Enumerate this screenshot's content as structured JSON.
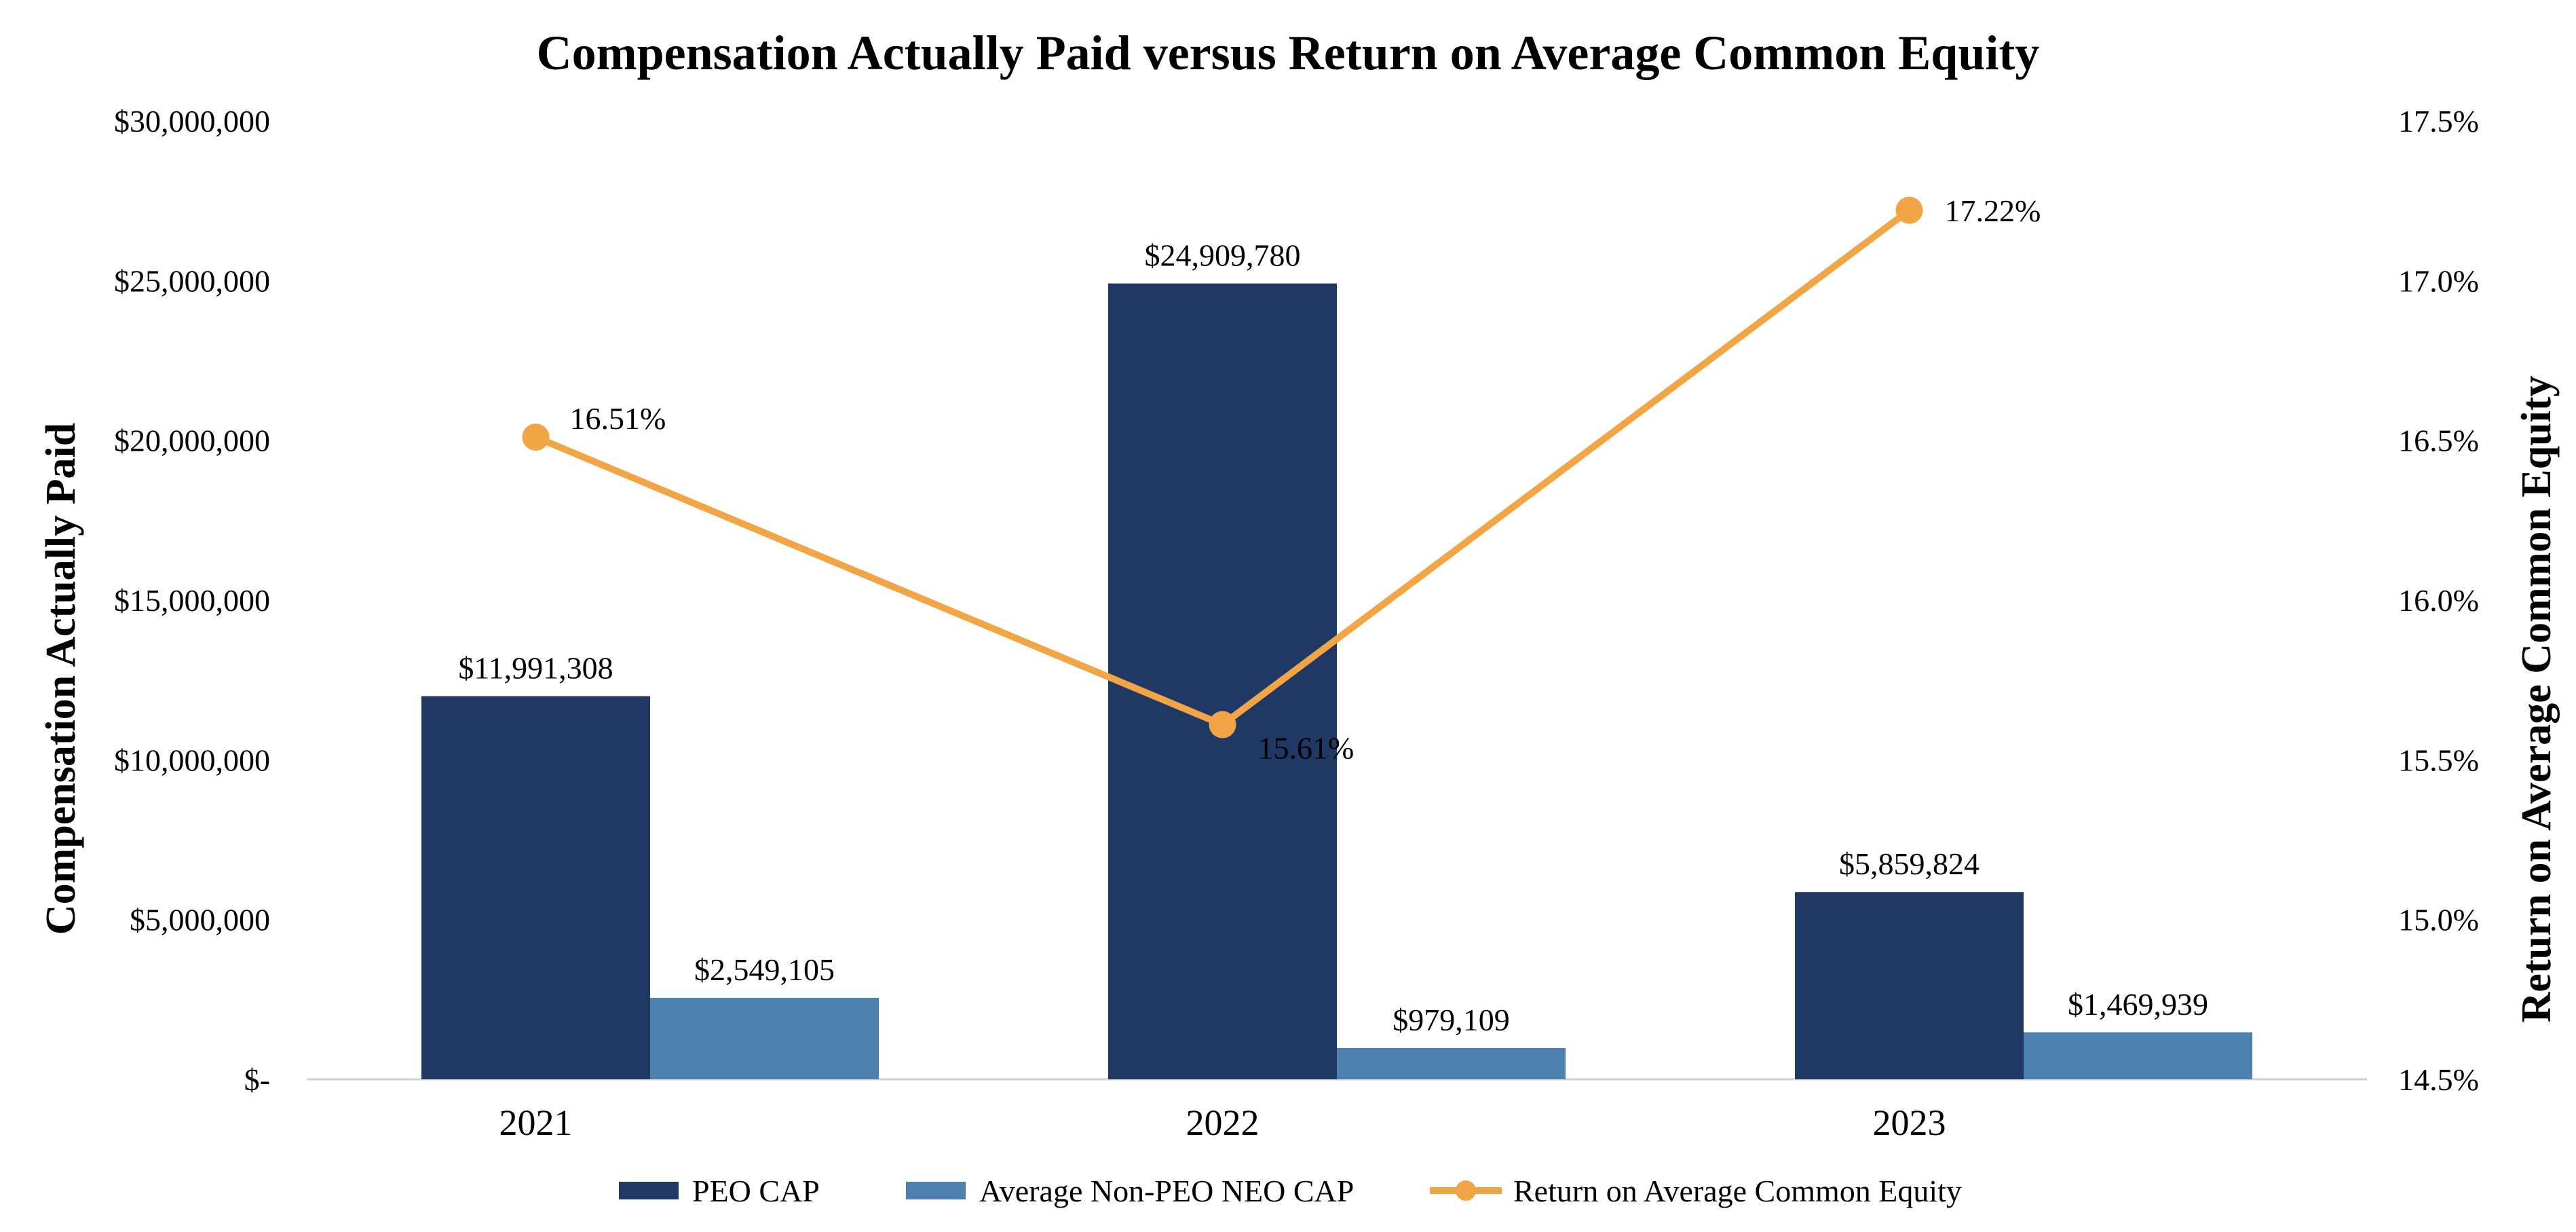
{
  "chart_data": {
    "type": "bar",
    "title": "Compensation Actually Paid versus Return on Average Common Equity",
    "ylabel": "Compensation Actually Paid",
    "y2label": "Return on Average Common Equity",
    "categories": [
      "2021",
      "2022",
      "2023"
    ],
    "ylim": [
      0,
      30000000
    ],
    "yticks": [
      0,
      5000000,
      10000000,
      15000000,
      20000000,
      25000000,
      30000000
    ],
    "yticklabels": [
      "$-",
      "$5,000,000",
      "$10,000,000",
      "$15,000,000",
      "$20,000,000",
      "$25,000,000",
      "$30,000,000"
    ],
    "y2lim": [
      14.5,
      17.5
    ],
    "y2ticks": [
      14.5,
      15.0,
      15.5,
      16.0,
      16.5,
      17.0,
      17.5
    ],
    "y2ticklabels": [
      "14.5%",
      "15.0%",
      "15.5%",
      "16.0%",
      "16.5%",
      "17.0%",
      "17.5%"
    ],
    "series": [
      {
        "name": "PEO CAP",
        "type": "bar",
        "color": "#203864",
        "values": [
          11991308,
          24909780,
          5859824
        ],
        "labels": [
          "$11,991,308",
          "$24,909,780",
          "$5,859,824"
        ]
      },
      {
        "name": "Average Non-PEO NEO CAP",
        "type": "bar",
        "color": "#4f81b0",
        "values": [
          2549105,
          979109,
          1469939
        ],
        "labels": [
          "$2,549,105",
          "$979,109",
          "$1,469,939"
        ]
      },
      {
        "name": "Return on Average Common Equity",
        "type": "line",
        "axis": "right",
        "color": "#f2a545",
        "values": [
          16.51,
          15.61,
          17.22
        ],
        "labels": [
          "16.51%",
          "15.61%",
          "17.22%"
        ]
      }
    ],
    "legend": "bottom",
    "grid": false
  }
}
